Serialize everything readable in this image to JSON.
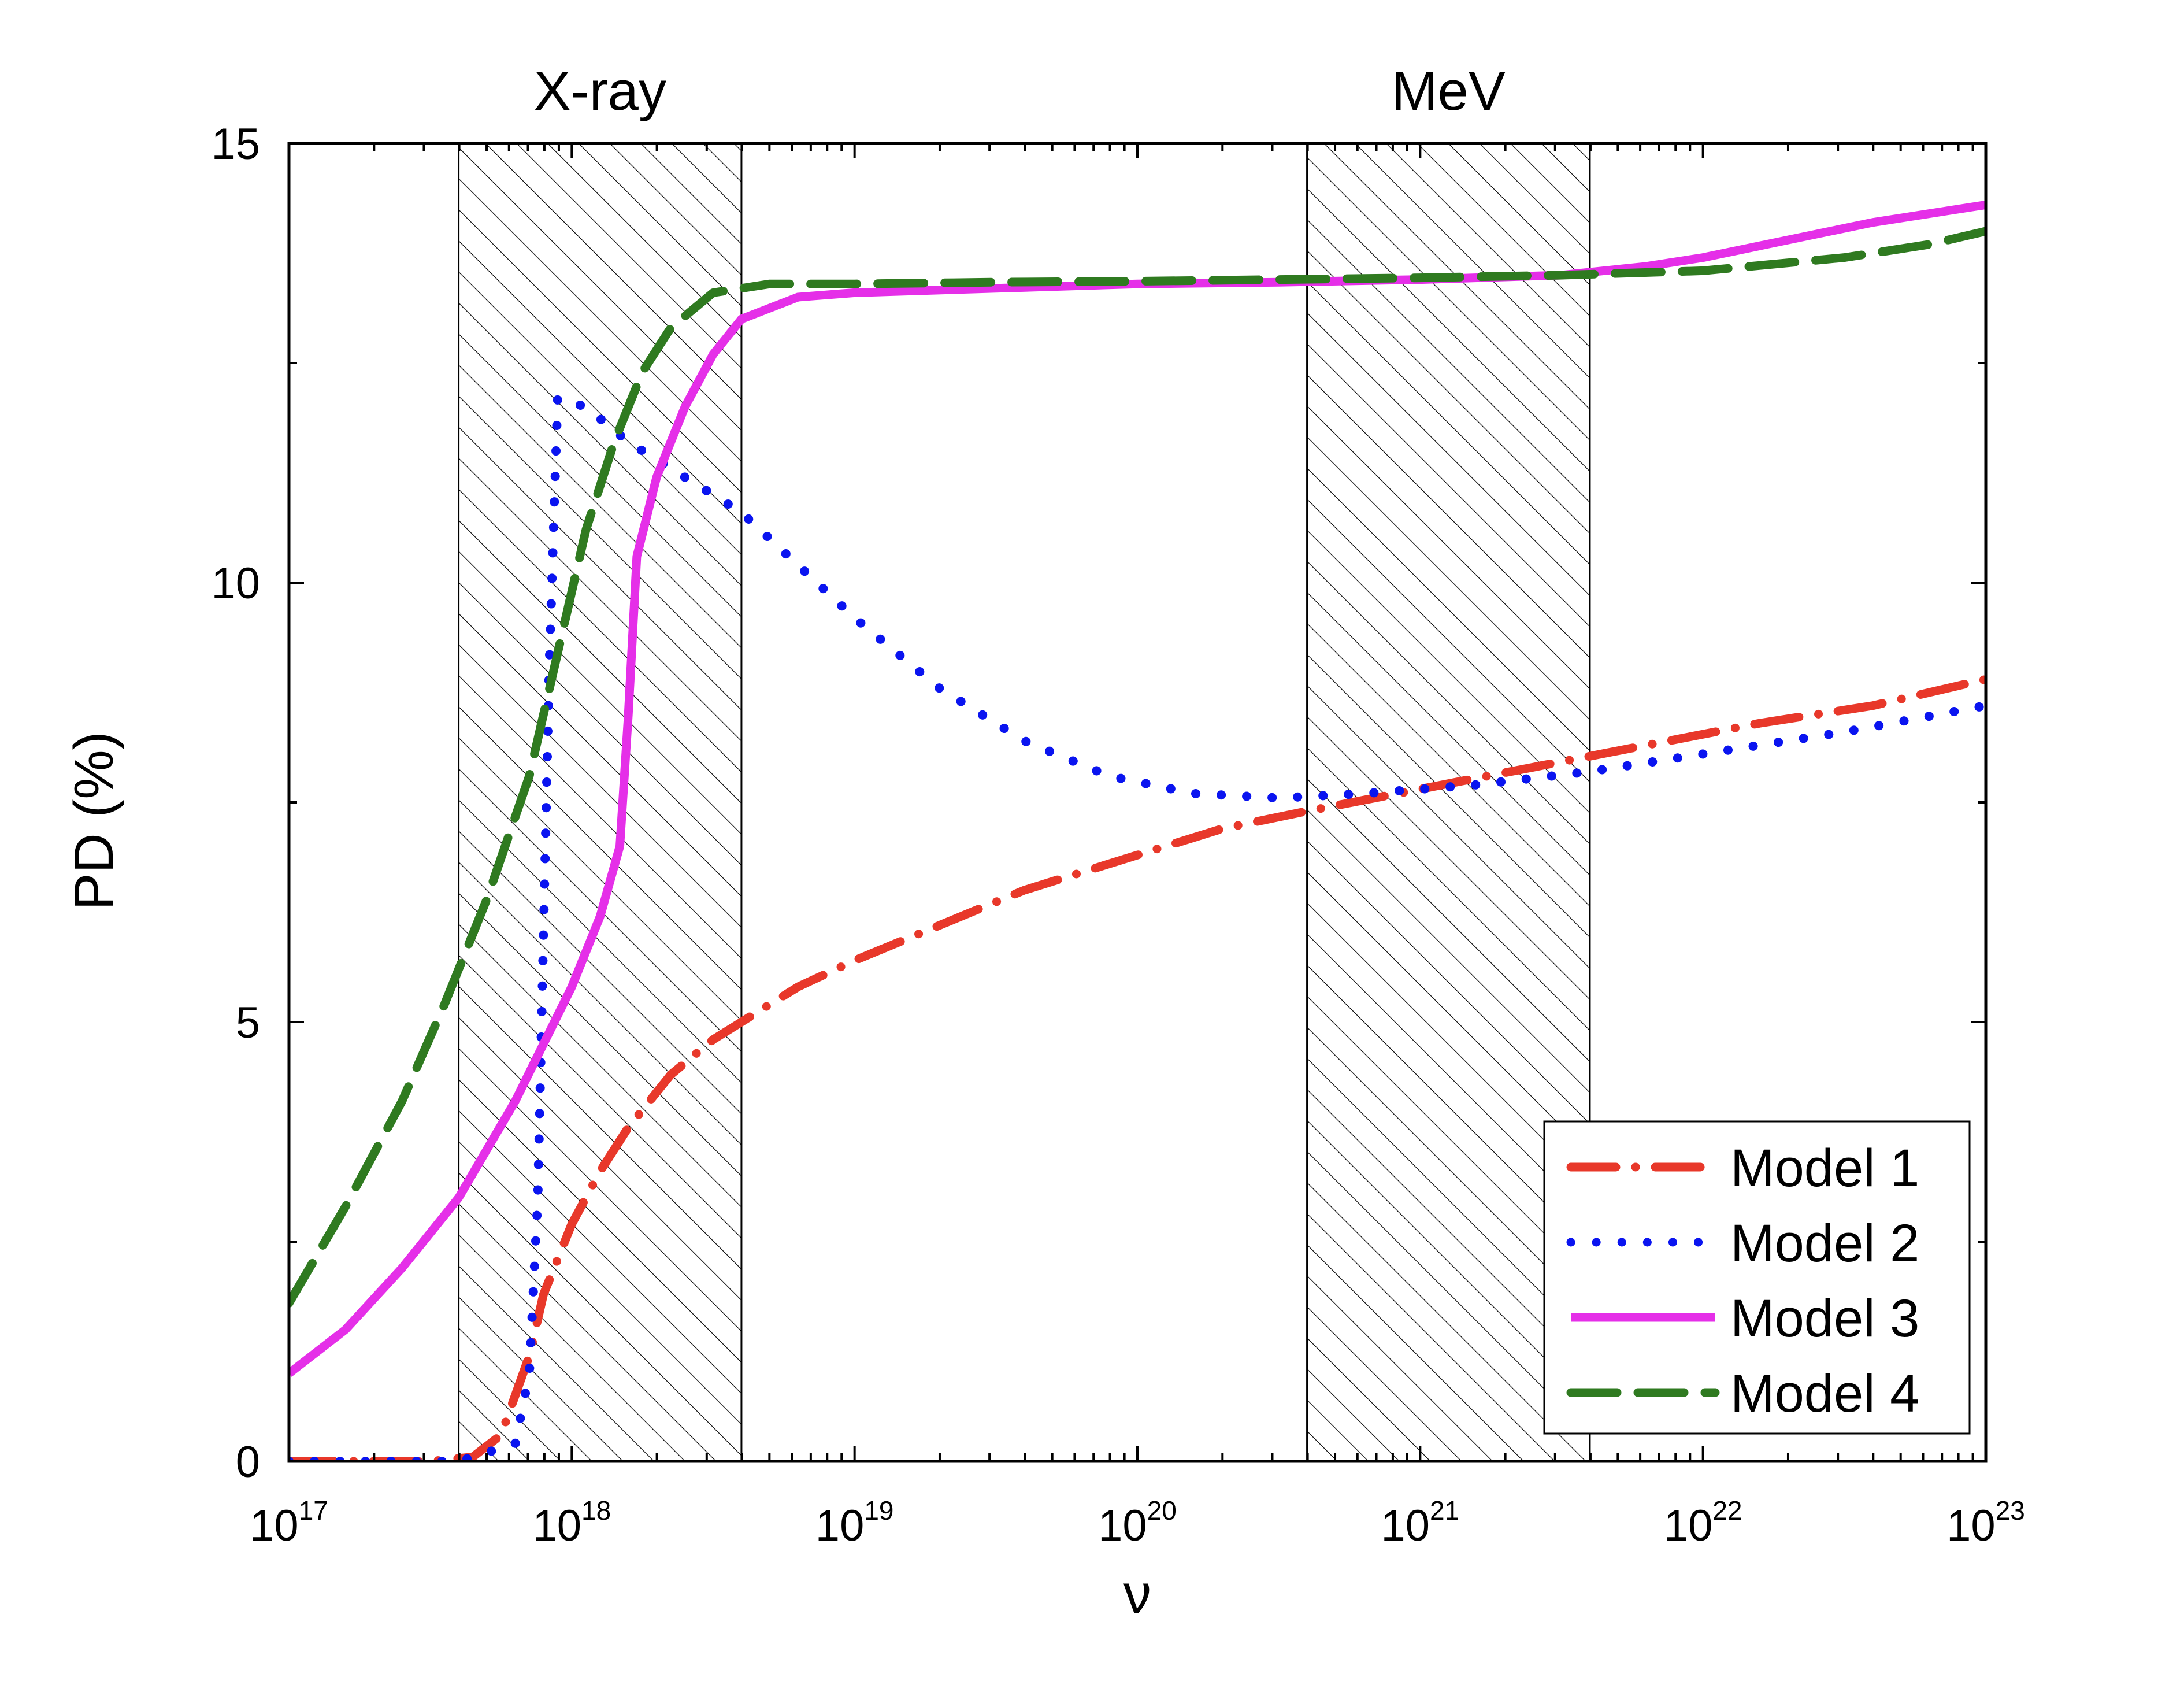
{
  "chart_data": {
    "type": "line",
    "title": "",
    "xlabel": "ν",
    "ylabel": "PD (%)",
    "xscale": "log",
    "xlim_exp": [
      17,
      23
    ],
    "ylim": [
      0,
      15
    ],
    "x_ticks": [
      {
        "base": "10",
        "exp": "17",
        "value": 17
      },
      {
        "base": "10",
        "exp": "18",
        "value": 18
      },
      {
        "base": "10",
        "exp": "19",
        "value": 19
      },
      {
        "base": "10",
        "exp": "20",
        "value": 20
      },
      {
        "base": "10",
        "exp": "21",
        "value": 21
      },
      {
        "base": "10",
        "exp": "22",
        "value": 22
      },
      {
        "base": "10",
        "exp": "23",
        "value": 23
      }
    ],
    "y_ticks": [
      {
        "label": "0",
        "value": 0
      },
      {
        "label": "5",
        "value": 5
      },
      {
        "label": "10",
        "value": 10
      },
      {
        "label": "15",
        "value": 15
      }
    ],
    "bands": [
      {
        "label": "X-ray",
        "from_exp": 17.6,
        "to_exp": 18.6
      },
      {
        "label": "MeV",
        "from_exp": 20.6,
        "to_exp": 21.6
      }
    ],
    "legend_position": "bottom-right",
    "series": [
      {
        "name": "Model 1",
        "style": "dashdot",
        "color": "#e8382a",
        "points": [
          [
            17.0,
            0.0
          ],
          [
            17.5,
            0.0
          ],
          [
            17.65,
            0.05
          ],
          [
            17.75,
            0.3
          ],
          [
            17.85,
            1.2
          ],
          [
            17.9,
            1.9
          ],
          [
            18.0,
            2.7
          ],
          [
            18.1,
            3.3
          ],
          [
            18.2,
            3.8
          ],
          [
            18.35,
            4.4
          ],
          [
            18.5,
            4.8
          ],
          [
            18.6,
            5.0
          ],
          [
            18.8,
            5.4
          ],
          [
            19.0,
            5.7
          ],
          [
            19.3,
            6.1
          ],
          [
            19.6,
            6.5
          ],
          [
            20.0,
            6.9
          ],
          [
            20.3,
            7.2
          ],
          [
            20.6,
            7.4
          ],
          [
            21.0,
            7.65
          ],
          [
            21.4,
            7.9
          ],
          [
            21.8,
            8.15
          ],
          [
            22.2,
            8.4
          ],
          [
            22.6,
            8.6
          ],
          [
            23.0,
            8.9
          ]
        ]
      },
      {
        "name": "Model 2",
        "style": "dotted",
        "color": "#0a14f0",
        "points": [
          [
            17.0,
            0.0
          ],
          [
            17.3,
            0.0
          ],
          [
            17.6,
            0.0
          ],
          [
            17.8,
            0.2
          ],
          [
            17.85,
            1.0
          ],
          [
            17.88,
            3.0
          ],
          [
            17.9,
            6.0
          ],
          [
            17.92,
            9.0
          ],
          [
            17.95,
            12.1
          ],
          [
            18.05,
            12.0
          ],
          [
            18.2,
            11.6
          ],
          [
            18.4,
            11.2
          ],
          [
            18.6,
            10.8
          ],
          [
            18.8,
            10.2
          ],
          [
            19.0,
            9.6
          ],
          [
            19.3,
            8.8
          ],
          [
            19.6,
            8.2
          ],
          [
            19.9,
            7.8
          ],
          [
            20.2,
            7.6
          ],
          [
            20.5,
            7.55
          ],
          [
            20.8,
            7.6
          ],
          [
            21.2,
            7.7
          ],
          [
            21.6,
            7.85
          ],
          [
            22.0,
            8.05
          ],
          [
            22.5,
            8.3
          ],
          [
            23.0,
            8.6
          ]
        ]
      },
      {
        "name": "Model 3",
        "style": "solid",
        "color": "#e52fe8",
        "points": [
          [
            17.0,
            1.0
          ],
          [
            17.2,
            1.5
          ],
          [
            17.4,
            2.2
          ],
          [
            17.6,
            3.0
          ],
          [
            17.8,
            4.1
          ],
          [
            18.0,
            5.4
          ],
          [
            18.1,
            6.2
          ],
          [
            18.17,
            7.0
          ],
          [
            18.2,
            8.5
          ],
          [
            18.23,
            10.3
          ],
          [
            18.3,
            11.2
          ],
          [
            18.4,
            12.0
          ],
          [
            18.5,
            12.6
          ],
          [
            18.6,
            13.0
          ],
          [
            18.8,
            13.25
          ],
          [
            19.0,
            13.3
          ],
          [
            19.5,
            13.35
          ],
          [
            20.0,
            13.4
          ],
          [
            20.5,
            13.42
          ],
          [
            21.0,
            13.45
          ],
          [
            21.5,
            13.5
          ],
          [
            21.8,
            13.6
          ],
          [
            22.0,
            13.7
          ],
          [
            22.3,
            13.9
          ],
          [
            22.6,
            14.1
          ],
          [
            23.0,
            14.3
          ]
        ]
      },
      {
        "name": "Model 4",
        "style": "dashed",
        "color": "#2f7a20",
        "points": [
          [
            17.0,
            1.8
          ],
          [
            17.2,
            2.9
          ],
          [
            17.4,
            4.1
          ],
          [
            17.55,
            5.2
          ],
          [
            17.7,
            6.4
          ],
          [
            17.85,
            7.8
          ],
          [
            17.95,
            9.2
          ],
          [
            18.05,
            10.6
          ],
          [
            18.15,
            11.6
          ],
          [
            18.25,
            12.4
          ],
          [
            18.35,
            12.9
          ],
          [
            18.5,
            13.3
          ],
          [
            18.7,
            13.4
          ],
          [
            19.0,
            13.4
          ],
          [
            19.5,
            13.42
          ],
          [
            20.0,
            13.43
          ],
          [
            20.5,
            13.45
          ],
          [
            21.0,
            13.47
          ],
          [
            21.5,
            13.5
          ],
          [
            22.0,
            13.55
          ],
          [
            22.5,
            13.7
          ],
          [
            22.8,
            13.85
          ],
          [
            23.0,
            14.0
          ]
        ]
      }
    ]
  }
}
